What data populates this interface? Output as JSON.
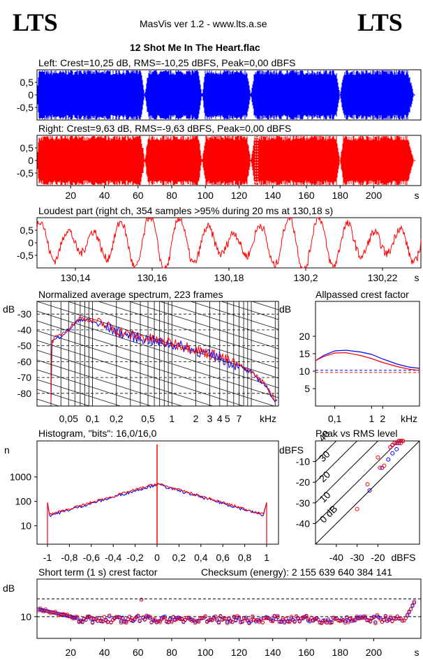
{
  "header": {
    "logo_left": "LTS",
    "logo_right": "LTS",
    "app_info": "MasVis ver 1.2 - www.lts.a.se",
    "file_name": "12 Shot Me In The Heart.flac"
  },
  "colors": {
    "left_channel": "#0000ff",
    "right_channel": "#ff0000"
  },
  "chart_data": [
    {
      "id": "left_waveform",
      "type": "area",
      "title": "Left: Crest=10,25 dB, RMS=-10,25 dBFS, Peak=0,00 dBFS",
      "yticks": [
        "0,5",
        "0",
        "-0,5"
      ],
      "ylim": [
        -1,
        1
      ],
      "xlim": [
        0,
        228
      ],
      "gaps": [
        64,
        98,
        127,
        180
      ],
      "stats": {
        "crest_db": 10.25,
        "rms_dbfs": -10.25,
        "peak_dbfs": 0.0
      }
    },
    {
      "id": "right_waveform",
      "type": "area",
      "title": "Right: Crest=9,63 dB, RMS=-9,63 dBFS, Peak=0,00 dBFS",
      "yticks": [
        "0,5",
        "0",
        "-0,5"
      ],
      "ylim": [
        -1,
        1
      ],
      "xlim": [
        0,
        228
      ],
      "xticks": [
        20,
        40,
        60,
        80,
        100,
        120,
        140,
        160,
        180,
        200
      ],
      "xunit": "s",
      "marker_x": 130.18,
      "stats": {
        "crest_db": 9.63,
        "rms_dbfs": -9.63,
        "peak_dbfs": 0.0
      }
    },
    {
      "id": "loudest_part",
      "type": "line",
      "title": "Loudest part (right ch, 354 samples >95% during 20 ms at 130,18 s)",
      "yticks": [
        "0,5",
        "0",
        "-0,5"
      ],
      "ylim": [
        -1,
        1
      ],
      "xticks": [
        "130,14",
        "130,16",
        "130,18",
        "130,2",
        "130,22"
      ],
      "xunit": "s",
      "xlim": [
        130.13,
        130.23
      ]
    },
    {
      "id": "spectrum",
      "type": "line",
      "title": "Normalized average spectrum, 223 frames",
      "ylabel": "dB",
      "yticks": [
        "-30",
        "-40",
        "-50",
        "-60",
        "-70",
        "-80"
      ],
      "xticks": [
        "0,05",
        "0,1",
        "0,2",
        "0,5",
        "1",
        "2",
        "3",
        "4",
        "5",
        "7"
      ],
      "xunit": "kHz",
      "series": [
        {
          "x": [
            0.03,
            0.05,
            0.07,
            0.1,
            0.15,
            0.2,
            0.3,
            0.5,
            0.7,
            1,
            1.5,
            2,
            3,
            4,
            5,
            7,
            10,
            15,
            20
          ],
          "y": [
            -48,
            -40,
            -33,
            -35,
            -38,
            -41,
            -44,
            -46,
            -48,
            -49,
            -51,
            -53,
            -56,
            -57,
            -60,
            -63,
            -67,
            -75,
            -85
          ]
        }
      ]
    },
    {
      "id": "allpassed_crest",
      "type": "line",
      "title": "Allpassed crest factor",
      "ylabel": "dB",
      "yticks": [
        "20",
        "15",
        "10",
        "5"
      ],
      "xticks": [
        "0,1",
        "1",
        "2"
      ],
      "xunit": "kHz",
      "series": [
        {
          "x": [
            0.03,
            0.05,
            0.1,
            0.2,
            0.5,
            1,
            2,
            5,
            10,
            20
          ],
          "y": [
            13,
            14.5,
            15.8,
            16,
            15.5,
            14.8,
            13.5,
            12,
            11.2,
            10.8
          ]
        },
        {
          "x": [
            0.03,
            0.05,
            0.1,
            0.2,
            0.5,
            1,
            2,
            5,
            10,
            20
          ],
          "y": [
            13,
            14.2,
            15.2,
            15.3,
            14.5,
            13.6,
            12.5,
            11.3,
            10.6,
            10.2
          ]
        }
      ],
      "reference_lines": [
        10.25,
        9.63
      ]
    },
    {
      "id": "histogram",
      "type": "line",
      "title": "Histogram, \"bits\": 16,0/16,0",
      "ylabel": "n",
      "yticks": [
        "1000",
        "100",
        "10"
      ],
      "xticks": [
        "-1",
        "-0,8",
        "-0,6",
        "-0,4",
        "-0,2",
        "0",
        "0,2",
        "0,4",
        "0,6",
        "0,8",
        "1"
      ]
    },
    {
      "id": "peak_vs_rms",
      "type": "scatter",
      "title": "Peak vs RMS level",
      "ylabel": "dBFS",
      "yticks": [
        "-10",
        "-20",
        "-30",
        "-40"
      ],
      "xticks": [
        "-40",
        "-30",
        "-20"
      ],
      "xunit": "dBFS",
      "diagonal_labels": [
        "40",
        "30",
        "20",
        "10",
        "0 dB"
      ],
      "series": [
        {
          "x": [
            -14,
            -13,
            -12,
            -11,
            -10,
            -10,
            -9,
            -9,
            -8,
            -8,
            -13,
            -15,
            -11,
            -18,
            -24
          ],
          "y": [
            -3,
            -2,
            -1,
            -1,
            0,
            -1,
            0,
            0,
            0,
            0,
            -6,
            -9,
            -4,
            -13,
            -24
          ]
        },
        {
          "x": [
            -14,
            -13,
            -12,
            -11,
            -10,
            -9,
            -9,
            -8,
            -8,
            -20,
            -25,
            -17,
            -19,
            -30
          ],
          "y": [
            -3,
            -2,
            -1,
            -1,
            0,
            0,
            -1,
            0,
            0,
            -8,
            -21,
            -12,
            -13,
            -33
          ]
        }
      ]
    },
    {
      "id": "short_term_crest",
      "type": "scatter",
      "title": "Short term (1 s) crest factor",
      "ylabel": "dB",
      "ytick": "10",
      "xticks": [
        20,
        40,
        60,
        80,
        100,
        120,
        140,
        160,
        180,
        200
      ],
      "xunit": "s",
      "checksum_text": "Checksum (energy):  2 155 639 640 384 141"
    }
  ]
}
